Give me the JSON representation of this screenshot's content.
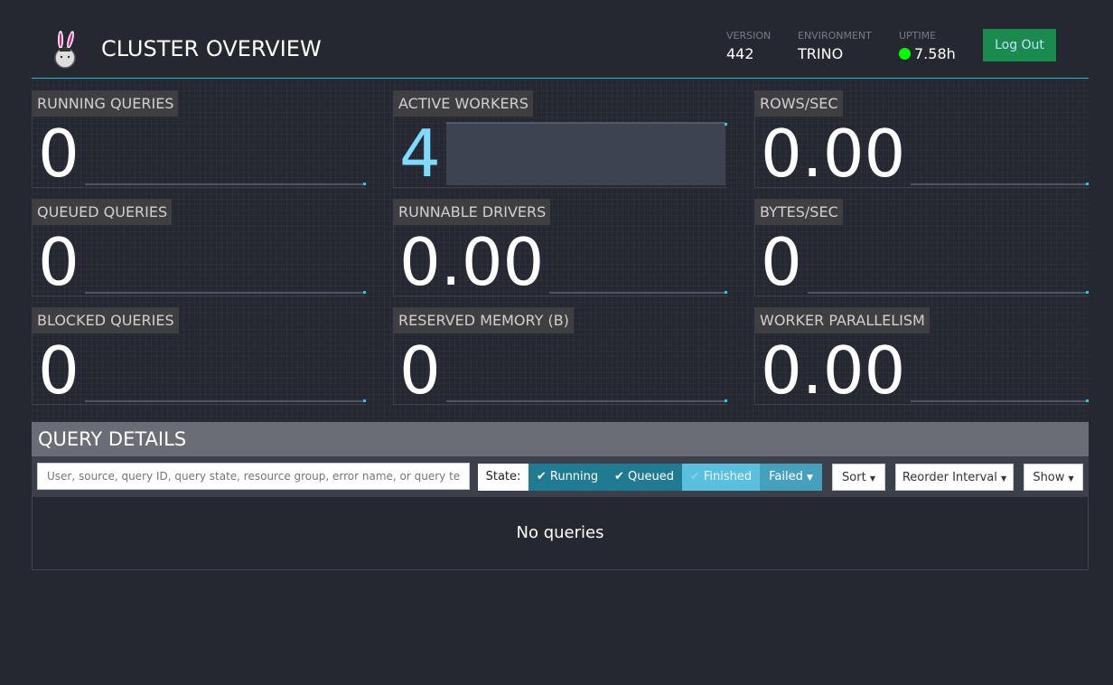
{
  "header": {
    "title": "CLUSTER OVERVIEW",
    "version_label": "VERSION",
    "version": "442",
    "environment_label": "ENVIRONMENT",
    "environment": "TRINO",
    "uptime_label": "UPTIME",
    "uptime": "7.58h",
    "uptime_status_color": "#00ff00",
    "logout": "Log Out"
  },
  "tiles": [
    {
      "label": "RUNNING QUERIES",
      "value": "0",
      "sparkline_fill": 0
    },
    {
      "label": "ACTIVE WORKERS",
      "value": "4",
      "sparkline_fill": 1
    },
    {
      "label": "ROWS/SEC",
      "value": "0.00",
      "sparkline_fill": 0
    },
    {
      "label": "QUEUED QUERIES",
      "value": "0",
      "sparkline_fill": 0
    },
    {
      "label": "RUNNABLE DRIVERS",
      "value": "0.00",
      "sparkline_fill": 0
    },
    {
      "label": "BYTES/SEC",
      "value": "0",
      "sparkline_fill": 0
    },
    {
      "label": "BLOCKED QUERIES",
      "value": "0",
      "sparkline_fill": 0
    },
    {
      "label": "RESERVED MEMORY (B)",
      "value": "0",
      "sparkline_fill": 0
    },
    {
      "label": "WORKER PARALLELISM",
      "value": "0.00",
      "sparkline_fill": 0
    }
  ],
  "query_details": {
    "title": "QUERY DETAILS",
    "search_placeholder": "User, source, query ID, query state, resource group, error name, or query text",
    "state_label": "State:",
    "filters": [
      {
        "label": "Running",
        "checked": true,
        "color": "#1f7a92"
      },
      {
        "label": "Queued",
        "checked": true,
        "color": "#1f7a92"
      },
      {
        "label": "Finished",
        "checked": false,
        "color": "#5bc0de"
      },
      {
        "label": "Failed",
        "dropdown": true,
        "color": "#46a0bb"
      }
    ],
    "sort": "Sort",
    "reorder": "Reorder Interval",
    "show": "Show",
    "empty": "No queries"
  }
}
